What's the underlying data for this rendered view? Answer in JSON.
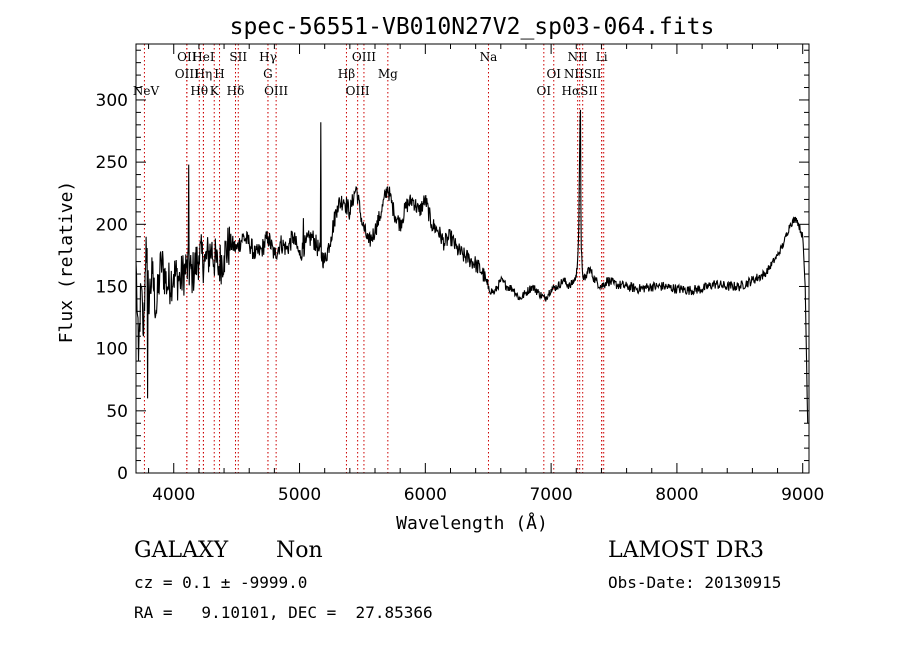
{
  "chart_data": {
    "type": "line",
    "title": "spec-56551-VB010N27V2_sp03-064.fits",
    "xlabel": "Wavelength (Å)",
    "ylabel": "Flux (relative)",
    "xlim": [
      3700,
      9050
    ],
    "ylim": [
      0,
      345
    ],
    "xticks": [
      4000,
      5000,
      6000,
      7000,
      8000,
      9000
    ],
    "yticks": [
      0,
      50,
      100,
      150,
      200,
      250,
      300
    ],
    "grid": false,
    "line_color": "#000000",
    "marker_color": "#cc0000",
    "series": [
      {
        "x": [
          3700,
          3720,
          3740,
          3760,
          3780,
          3800,
          3830,
          3860,
          3900,
          3950,
          4000,
          4050,
          4100,
          4150,
          4200,
          4250,
          4300,
          4350,
          4400,
          4450,
          4500,
          4550,
          4600,
          4650,
          4700,
          4750,
          4800,
          4850,
          4900,
          4950,
          5000,
          5050,
          5100,
          5150,
          5200,
          5250,
          5300,
          5350,
          5400,
          5450,
          5500,
          5550,
          5600,
          5650,
          5700,
          5750,
          5800,
          5850,
          5900,
          5950,
          6000,
          6050,
          6100,
          6150,
          6200,
          6250,
          6300,
          6350,
          6400,
          6450,
          6480,
          6500,
          6550,
          6600,
          6650,
          6700,
          6750,
          6800,
          6850,
          6900,
          6950,
          7000,
          7050,
          7100,
          7150,
          7200,
          7210,
          7220,
          7230,
          7240,
          7250,
          7270,
          7300,
          7350,
          7400,
          7450,
          7500,
          7600,
          7700,
          7800,
          7900,
          8000,
          8100,
          8200,
          8300,
          8400,
          8500,
          8600,
          8700,
          8800,
          8850,
          8900,
          8950,
          9000,
          9020,
          9040
        ],
        "y": [
          170,
          90,
          150,
          110,
          190,
          140,
          160,
          130,
          170,
          150,
          160,
          155,
          165,
          160,
          175,
          170,
          180,
          165,
          175,
          185,
          180,
          190,
          185,
          175,
          180,
          190,
          175,
          185,
          180,
          190,
          175,
          185,
          190,
          180,
          170,
          190,
          215,
          220,
          210,
          230,
          200,
          185,
          195,
          210,
          230,
          210,
          200,
          215,
          220,
          210,
          220,
          200,
          195,
          185,
          190,
          180,
          175,
          172,
          168,
          162,
          155,
          148,
          145,
          155,
          150,
          148,
          140,
          145,
          150,
          145,
          140,
          148,
          150,
          155,
          150,
          158,
          170,
          200,
          285,
          180,
          160,
          155,
          165,
          155,
          150,
          155,
          152,
          150,
          148,
          150,
          150,
          148,
          147,
          148,
          152,
          150,
          150,
          155,
          160,
          175,
          185,
          200,
          205,
          190,
          150,
          40
        ]
      }
    ],
    "lines": [
      {
        "name": "NeV",
        "x": 3767
      },
      {
        "name": "OII",
        "x": 4104
      },
      {
        "name": "OIII",
        "x": 4104
      },
      {
        "name": "Hθ",
        "x": 4203
      },
      {
        "name": "Hη",
        "x": 4236
      },
      {
        "name": "HeI",
        "x": 4236
      },
      {
        "name": "K",
        "x": 4322
      },
      {
        "name": "H",
        "x": 4364
      },
      {
        "name": "Hδ",
        "x": 4491
      },
      {
        "name": "SII",
        "x": 4513
      },
      {
        "name": "Hγ",
        "x": 4749
      },
      {
        "name": "G",
        "x": 4749
      },
      {
        "name": "OIII",
        "x": 4814
      },
      {
        "name": "Hβ",
        "x": 5373
      },
      {
        "name": "OIII",
        "x": 5462
      },
      {
        "name": "OIII",
        "x": 5512
      },
      {
        "name": "Mg",
        "x": 5702
      },
      {
        "name": "Na",
        "x": 6502
      },
      {
        "name": "OI",
        "x": 6942
      },
      {
        "name": "OI",
        "x": 7021
      },
      {
        "name": "NII",
        "x": 7211
      },
      {
        "name": "Hα",
        "x": 7227
      },
      {
        "name": "NII",
        "x": 7251
      },
      {
        "name": "SII",
        "x": 7402
      },
      {
        "name": "Li",
        "x": 7402
      },
      {
        "name": "SII",
        "x": 7418
      }
    ],
    "labels": [
      {
        "text": "NeV",
        "x": 3767,
        "row": 3
      },
      {
        "text": "OII",
        "x": 4104,
        "row": 0
      },
      {
        "text": "OIII",
        "x": 4104,
        "row": 1
      },
      {
        "text": "Hθ",
        "x": 4203,
        "row": 2
      },
      {
        "text": "HeI",
        "x": 4236,
        "row": 0
      },
      {
        "text": "Hη",
        "x": 4236,
        "row": 1
      },
      {
        "text": "K",
        "x": 4322,
        "row": 2
      },
      {
        "text": "H",
        "x": 4364,
        "row": 1
      },
      {
        "text": "Hδ",
        "x": 4491,
        "row": 2
      },
      {
        "text": "SII",
        "x": 4513,
        "row": 0
      },
      {
        "text": "Hγ",
        "x": 4749,
        "row": 0
      },
      {
        "text": "G",
        "x": 4749,
        "row": 1
      },
      {
        "text": "OIII",
        "x": 4814,
        "row": 2
      },
      {
        "text": "OIII",
        "x": 5512,
        "row": 0
      },
      {
        "text": "Hβ",
        "x": 5373,
        "row": 1
      },
      {
        "text": "OIII",
        "x": 5462,
        "row": 2
      },
      {
        "text": "Mg",
        "x": 5702,
        "row": 1
      },
      {
        "text": "Na",
        "x": 6502,
        "row": 0
      },
      {
        "text": "OI",
        "x": 7021,
        "row": 1
      },
      {
        "text": "OI",
        "x": 6942,
        "row": 2
      },
      {
        "text": "NII",
        "x": 7211,
        "row": 0
      },
      {
        "text": "Li",
        "x": 7402,
        "row": 0
      },
      {
        "text": "NIISII",
        "x": 7251,
        "row": 1
      },
      {
        "text": "HαSII",
        "x": 7227,
        "row": 2
      }
    ]
  },
  "info": {
    "class_label": "GALAXY",
    "subclass_label": "Non",
    "survey_label": "LAMOST DR3",
    "cz_line": "cz = 0.1 ± -9999.0",
    "obs_date_line": "Obs-Date: 20130915",
    "radec_line": "RA =   9.10101, DEC =  27.85366"
  }
}
